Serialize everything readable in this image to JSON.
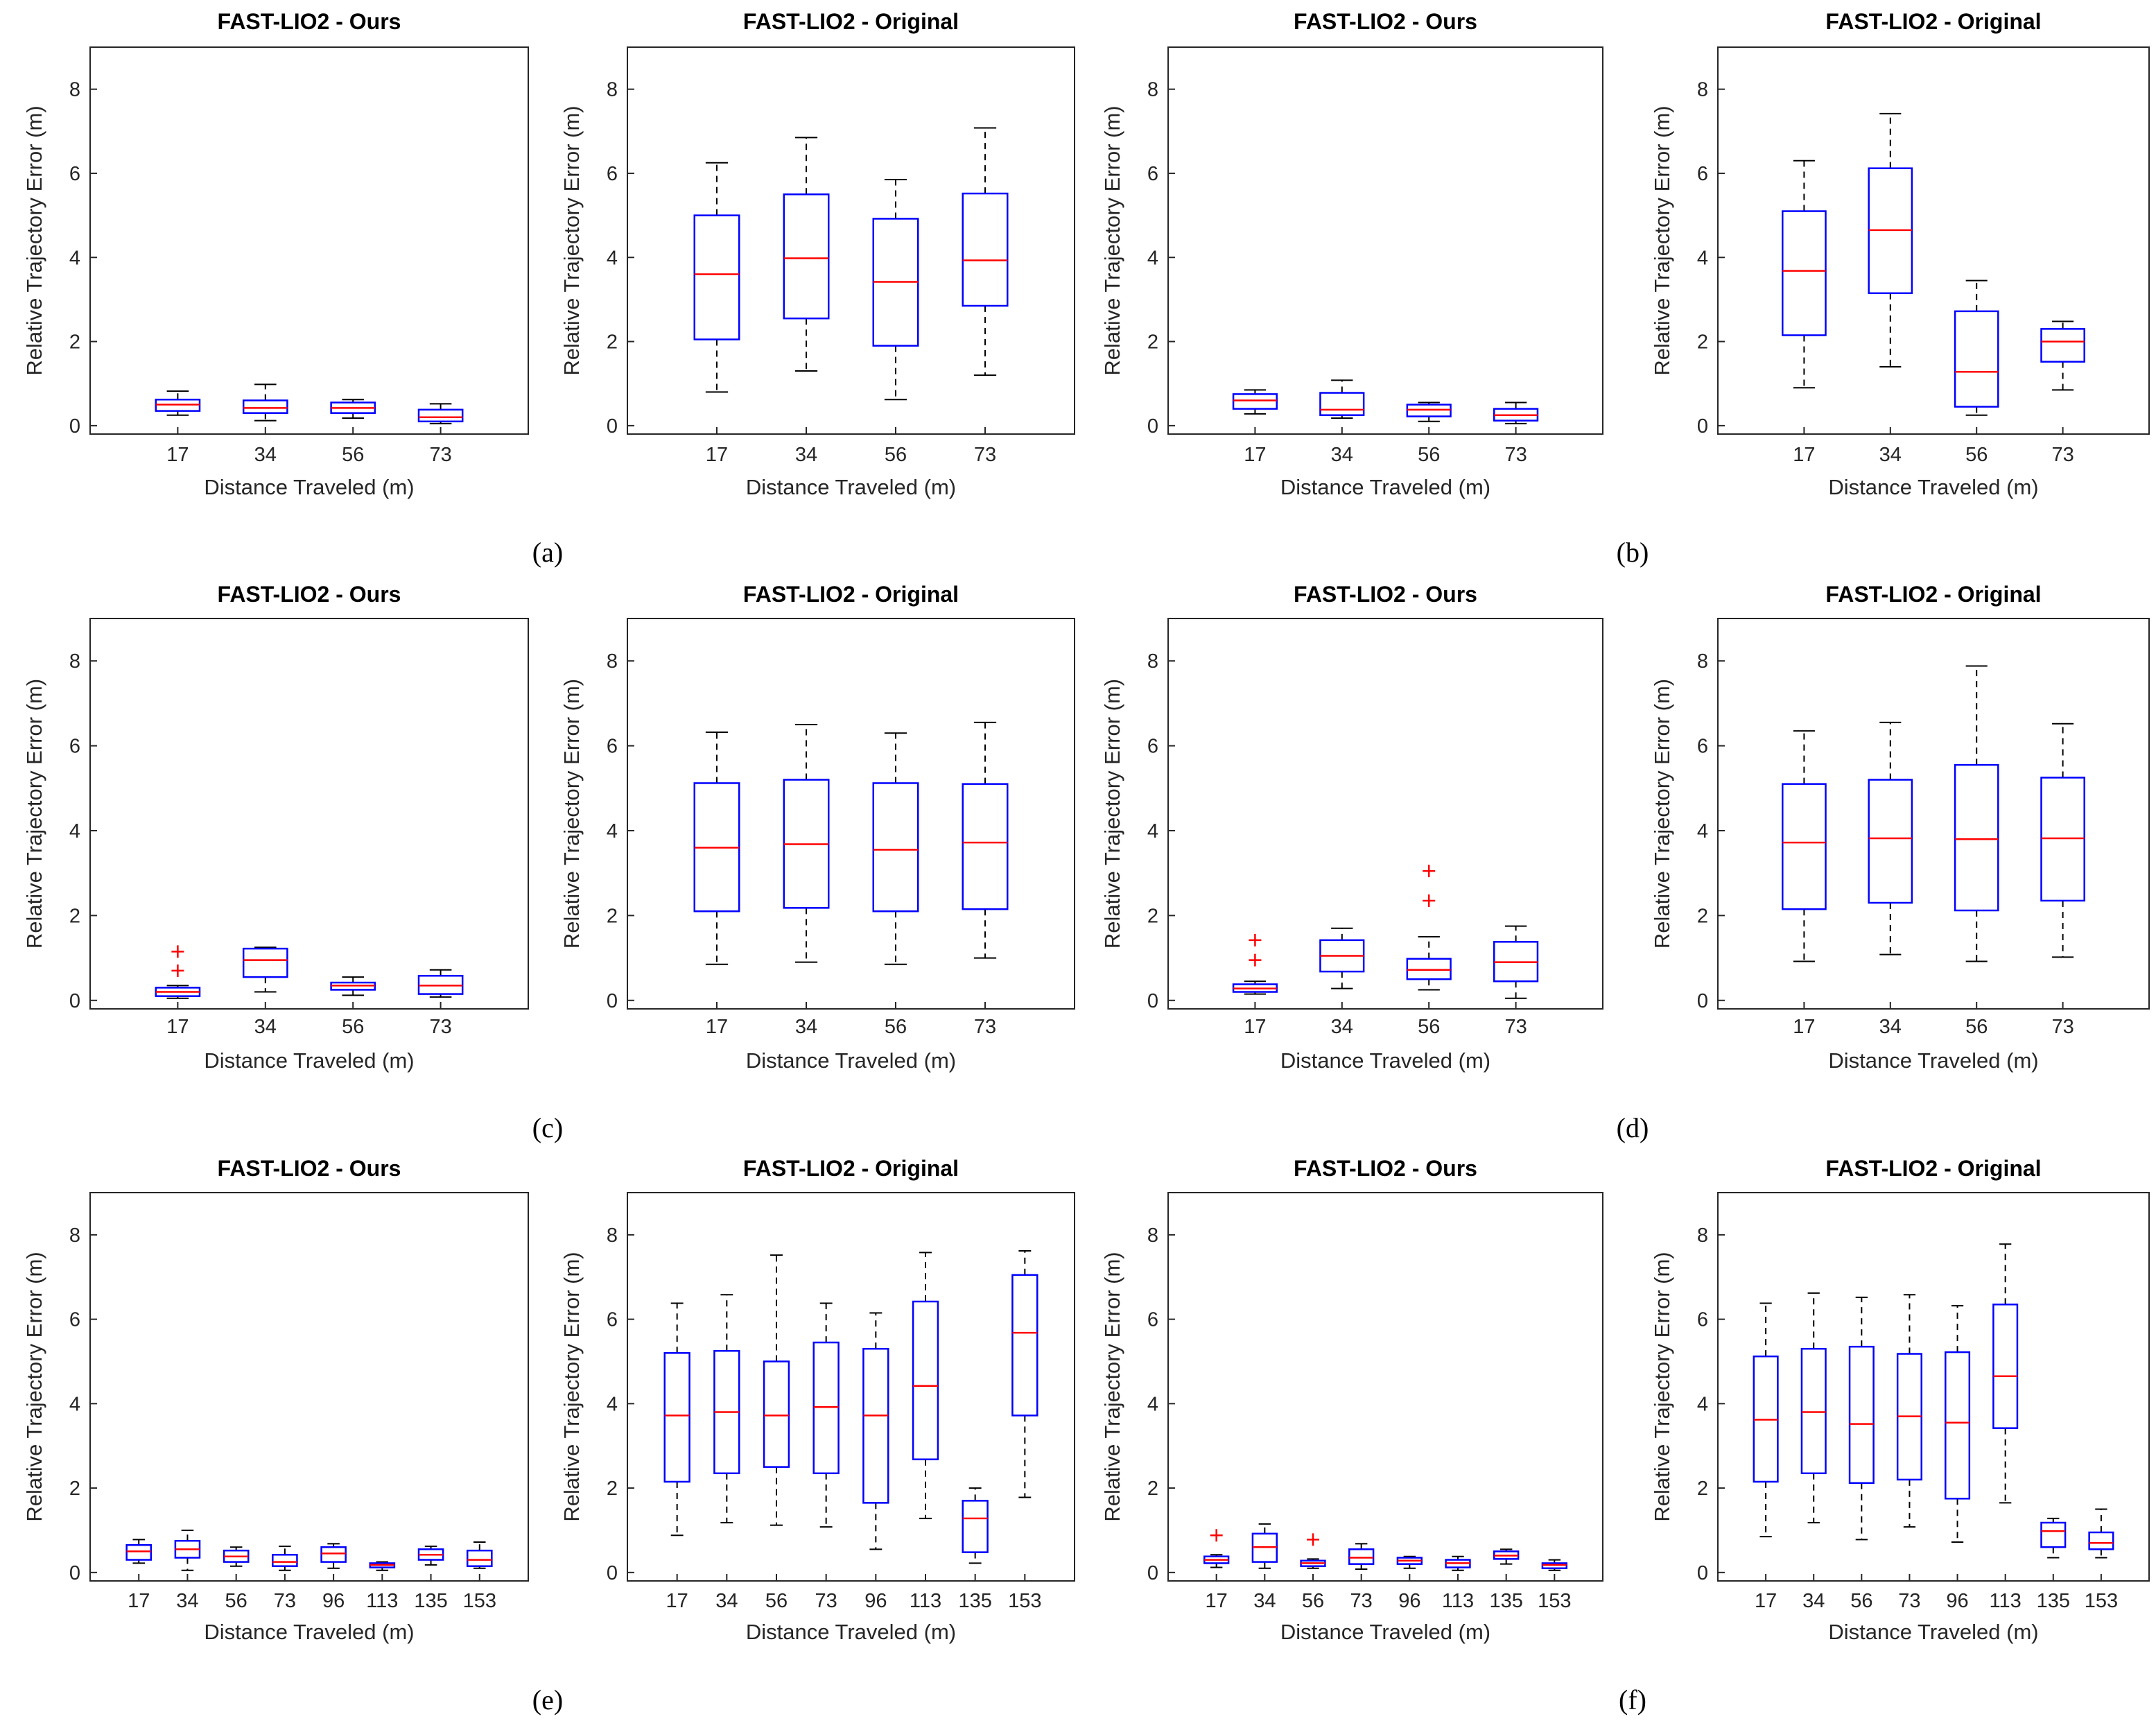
{
  "labels": {
    "ours_title": "FAST-LIO2 - Ours",
    "original_title": "FAST-LIO2 - Original",
    "xlabel": "Distance Traveled (m)",
    "ylabel": "Relative Trajectory Error (m)"
  },
  "captions": [
    "(a)",
    "(b)",
    "(c)",
    "(d)",
    "(e)",
    "(f)"
  ],
  "colors": {
    "box": "#0000ff",
    "median": "#ff0000",
    "whisker": "#000000",
    "outlier": "#ff0000",
    "frame": "#262626"
  },
  "chart_data": [
    {
      "type": "box",
      "title": "FAST-LIO2 - Ours",
      "xlabel": "Distance Traveled (m)",
      "ylabel": "Relative Trajectory Error (m)",
      "ylim": [
        -0.2,
        9
      ],
      "yticks": [
        0,
        2,
        4,
        6,
        8
      ],
      "categories": [
        "17",
        "34",
        "56",
        "73"
      ],
      "boxes": [
        {
          "q1": 0.35,
          "median": 0.5,
          "q3": 0.62,
          "wlo": 0.25,
          "whi": 0.82,
          "outliers": []
        },
        {
          "q1": 0.3,
          "median": 0.42,
          "q3": 0.6,
          "wlo": 0.12,
          "whi": 0.98,
          "outliers": []
        },
        {
          "q1": 0.3,
          "median": 0.42,
          "q3": 0.55,
          "wlo": 0.18,
          "whi": 0.62,
          "outliers": []
        },
        {
          "q1": 0.1,
          "median": 0.2,
          "q3": 0.38,
          "wlo": 0.05,
          "whi": 0.52,
          "outliers": []
        }
      ]
    },
    {
      "type": "box",
      "title": "FAST-LIO2 - Original",
      "xlabel": "Distance Traveled (m)",
      "ylabel": "Relative Trajectory Error (m)",
      "ylim": [
        -0.2,
        9
      ],
      "yticks": [
        0,
        2,
        4,
        6,
        8
      ],
      "categories": [
        "17",
        "34",
        "56",
        "73"
      ],
      "boxes": [
        {
          "q1": 2.05,
          "median": 3.6,
          "q3": 5.0,
          "wlo": 0.8,
          "whi": 6.25,
          "outliers": []
        },
        {
          "q1": 2.55,
          "median": 3.98,
          "q3": 5.5,
          "wlo": 1.3,
          "whi": 6.85,
          "outliers": []
        },
        {
          "q1": 1.9,
          "median": 3.42,
          "q3": 4.92,
          "wlo": 0.62,
          "whi": 5.85,
          "outliers": []
        },
        {
          "q1": 2.85,
          "median": 3.93,
          "q3": 5.52,
          "wlo": 1.2,
          "whi": 7.08,
          "outliers": []
        }
      ]
    },
    {
      "type": "box",
      "title": "FAST-LIO2 - Ours",
      "xlabel": "Distance Traveled (m)",
      "ylabel": "Relative Trajectory Error (m)",
      "ylim": [
        -0.2,
        9
      ],
      "yticks": [
        0,
        2,
        4,
        6,
        8
      ],
      "categories": [
        "17",
        "34",
        "56",
        "73"
      ],
      "boxes": [
        {
          "q1": 0.4,
          "median": 0.6,
          "q3": 0.75,
          "wlo": 0.28,
          "whi": 0.85,
          "outliers": []
        },
        {
          "q1": 0.25,
          "median": 0.38,
          "q3": 0.78,
          "wlo": 0.18,
          "whi": 1.08,
          "outliers": []
        },
        {
          "q1": 0.22,
          "median": 0.38,
          "q3": 0.5,
          "wlo": 0.1,
          "whi": 0.55,
          "outliers": []
        },
        {
          "q1": 0.12,
          "median": 0.25,
          "q3": 0.4,
          "wlo": 0.05,
          "whi": 0.55,
          "outliers": []
        }
      ]
    },
    {
      "type": "box",
      "title": "FAST-LIO2 - Original",
      "xlabel": "Distance Traveled (m)",
      "ylabel": "Relative Trajectory Error (m)",
      "ylim": [
        -0.2,
        9
      ],
      "yticks": [
        0,
        2,
        4,
        6,
        8
      ],
      "categories": [
        "17",
        "34",
        "56",
        "73"
      ],
      "boxes": [
        {
          "q1": 2.15,
          "median": 3.68,
          "q3": 5.1,
          "wlo": 0.9,
          "whi": 6.3,
          "outliers": []
        },
        {
          "q1": 3.15,
          "median": 4.65,
          "q3": 6.12,
          "wlo": 1.4,
          "whi": 7.42,
          "outliers": []
        },
        {
          "q1": 0.45,
          "median": 1.28,
          "q3": 2.72,
          "wlo": 0.25,
          "whi": 3.45,
          "outliers": []
        },
        {
          "q1": 1.52,
          "median": 2.0,
          "q3": 2.3,
          "wlo": 0.85,
          "whi": 2.48,
          "outliers": []
        }
      ]
    },
    {
      "type": "box",
      "title": "FAST-LIO2 - Ours",
      "xlabel": "Distance Traveled (m)",
      "ylabel": "Relative Trajectory Error (m)",
      "ylim": [
        -0.2,
        9
      ],
      "yticks": [
        0,
        2,
        4,
        6,
        8
      ],
      "categories": [
        "17",
        "34",
        "56",
        "73"
      ],
      "boxes": [
        {
          "q1": 0.1,
          "median": 0.2,
          "q3": 0.3,
          "wlo": 0.05,
          "whi": 0.35,
          "outliers": [
            0.7,
            1.15
          ]
        },
        {
          "q1": 0.55,
          "median": 0.95,
          "q3": 1.22,
          "wlo": 0.2,
          "whi": 1.25,
          "outliers": []
        },
        {
          "q1": 0.25,
          "median": 0.35,
          "q3": 0.42,
          "wlo": 0.12,
          "whi": 0.55,
          "outliers": []
        },
        {
          "q1": 0.15,
          "median": 0.35,
          "q3": 0.58,
          "wlo": 0.08,
          "whi": 0.72,
          "outliers": []
        }
      ]
    },
    {
      "type": "box",
      "title": "FAST-LIO2 - Original",
      "xlabel": "Distance Traveled (m)",
      "ylabel": "Relative Trajectory Error (m)",
      "ylim": [
        -0.2,
        9
      ],
      "yticks": [
        0,
        2,
        4,
        6,
        8
      ],
      "categories": [
        "17",
        "34",
        "56",
        "73"
      ],
      "boxes": [
        {
          "q1": 2.1,
          "median": 3.6,
          "q3": 5.12,
          "wlo": 0.85,
          "whi": 6.32,
          "outliers": []
        },
        {
          "q1": 2.18,
          "median": 3.68,
          "q3": 5.2,
          "wlo": 0.9,
          "whi": 6.5,
          "outliers": []
        },
        {
          "q1": 2.1,
          "median": 3.55,
          "q3": 5.12,
          "wlo": 0.85,
          "whi": 6.3,
          "outliers": []
        },
        {
          "q1": 2.15,
          "median": 3.72,
          "q3": 5.1,
          "wlo": 1.0,
          "whi": 6.55,
          "outliers": []
        }
      ]
    },
    {
      "type": "box",
      "title": "FAST-LIO2 - Ours",
      "xlabel": "Distance Traveled (m)",
      "ylabel": "Relative Trajectory Error (m)",
      "ylim": [
        -0.2,
        9
      ],
      "yticks": [
        0,
        2,
        4,
        6,
        8
      ],
      "categories": [
        "17",
        "34",
        "56",
        "73"
      ],
      "boxes": [
        {
          "q1": 0.2,
          "median": 0.28,
          "q3": 0.38,
          "wlo": 0.15,
          "whi": 0.45,
          "outliers": [
            0.95,
            1.42
          ]
        },
        {
          "q1": 0.68,
          "median": 1.05,
          "q3": 1.42,
          "wlo": 0.28,
          "whi": 1.7,
          "outliers": []
        },
        {
          "q1": 0.5,
          "median": 0.72,
          "q3": 0.98,
          "wlo": 0.25,
          "whi": 1.5,
          "outliers": [
            2.35,
            3.05
          ]
        },
        {
          "q1": 0.45,
          "median": 0.9,
          "q3": 1.38,
          "wlo": 0.05,
          "whi": 1.75,
          "outliers": []
        }
      ]
    },
    {
      "type": "box",
      "title": "FAST-LIO2 - Original",
      "xlabel": "Distance Traveled (m)",
      "ylabel": "Relative Trajectory Error (m)",
      "ylim": [
        -0.2,
        9
      ],
      "yticks": [
        0,
        2,
        4,
        6,
        8
      ],
      "categories": [
        "17",
        "34",
        "56",
        "73"
      ],
      "boxes": [
        {
          "q1": 2.15,
          "median": 3.72,
          "q3": 5.1,
          "wlo": 0.92,
          "whi": 6.35,
          "outliers": []
        },
        {
          "q1": 2.3,
          "median": 3.82,
          "q3": 5.2,
          "wlo": 1.08,
          "whi": 6.55,
          "outliers": []
        },
        {
          "q1": 2.12,
          "median": 3.8,
          "q3": 5.55,
          "wlo": 0.92,
          "whi": 7.88,
          "outliers": []
        },
        {
          "q1": 2.35,
          "median": 3.82,
          "q3": 5.25,
          "wlo": 1.02,
          "whi": 6.52,
          "outliers": []
        }
      ]
    },
    {
      "type": "box",
      "title": "FAST-LIO2 - Ours",
      "xlabel": "Distance Traveled (m)",
      "ylabel": "Relative Trajectory Error (m)",
      "ylim": [
        -0.2,
        9
      ],
      "yticks": [
        0,
        2,
        4,
        6,
        8
      ],
      "categories": [
        "17",
        "34",
        "56",
        "73",
        "96",
        "113",
        "135",
        "153"
      ],
      "boxes": [
        {
          "q1": 0.3,
          "median": 0.5,
          "q3": 0.65,
          "wlo": 0.22,
          "whi": 0.78,
          "outliers": []
        },
        {
          "q1": 0.35,
          "median": 0.55,
          "q3": 0.75,
          "wlo": 0.05,
          "whi": 1.0,
          "outliers": []
        },
        {
          "q1": 0.25,
          "median": 0.38,
          "q3": 0.52,
          "wlo": 0.15,
          "whi": 0.6,
          "outliers": []
        },
        {
          "q1": 0.15,
          "median": 0.25,
          "q3": 0.42,
          "wlo": 0.05,
          "whi": 0.62,
          "outliers": []
        },
        {
          "q1": 0.25,
          "median": 0.45,
          "q3": 0.6,
          "wlo": 0.1,
          "whi": 0.68,
          "outliers": []
        },
        {
          "q1": 0.12,
          "median": 0.18,
          "q3": 0.22,
          "wlo": 0.05,
          "whi": 0.25,
          "outliers": []
        },
        {
          "q1": 0.3,
          "median": 0.42,
          "q3": 0.55,
          "wlo": 0.18,
          "whi": 0.62,
          "outliers": []
        },
        {
          "q1": 0.15,
          "median": 0.3,
          "q3": 0.52,
          "wlo": 0.1,
          "whi": 0.72,
          "outliers": []
        }
      ]
    },
    {
      "type": "box",
      "title": "FAST-LIO2 - Original",
      "xlabel": "Distance Traveled (m)",
      "ylabel": "Relative Trajectory Error (m)",
      "ylim": [
        -0.2,
        9
      ],
      "yticks": [
        0,
        2,
        4,
        6,
        8
      ],
      "categories": [
        "17",
        "34",
        "56",
        "73",
        "96",
        "113",
        "135",
        "153"
      ],
      "boxes": [
        {
          "q1": 2.15,
          "median": 3.72,
          "q3": 5.2,
          "wlo": 0.88,
          "whi": 6.38,
          "outliers": []
        },
        {
          "q1": 2.35,
          "median": 3.8,
          "q3": 5.25,
          "wlo": 1.18,
          "whi": 6.58,
          "outliers": []
        },
        {
          "q1": 2.5,
          "median": 3.72,
          "q3": 5.0,
          "wlo": 1.12,
          "whi": 7.52,
          "outliers": []
        },
        {
          "q1": 2.35,
          "median": 3.92,
          "q3": 5.45,
          "wlo": 1.08,
          "whi": 6.38,
          "outliers": []
        },
        {
          "q1": 1.65,
          "median": 3.72,
          "q3": 5.3,
          "wlo": 0.55,
          "whi": 6.15,
          "outliers": []
        },
        {
          "q1": 2.68,
          "median": 4.42,
          "q3": 6.42,
          "wlo": 1.28,
          "whi": 7.58,
          "outliers": []
        },
        {
          "q1": 0.48,
          "median": 1.28,
          "q3": 1.7,
          "wlo": 0.22,
          "whi": 2.0,
          "outliers": []
        },
        {
          "q1": 3.72,
          "median": 5.68,
          "q3": 7.05,
          "wlo": 1.78,
          "whi": 7.62,
          "outliers": []
        }
      ]
    },
    {
      "type": "box",
      "title": "FAST-LIO2 - Ours",
      "xlabel": "Distance Traveled (m)",
      "ylabel": "Relative Trajectory Error (m)",
      "ylim": [
        -0.2,
        9
      ],
      "yticks": [
        0,
        2,
        4,
        6,
        8
      ],
      "categories": [
        "17",
        "34",
        "56",
        "73",
        "96",
        "113",
        "135",
        "153"
      ],
      "boxes": [
        {
          "q1": 0.22,
          "median": 0.3,
          "q3": 0.38,
          "wlo": 0.12,
          "whi": 0.42,
          "outliers": [
            0.88
          ]
        },
        {
          "q1": 0.25,
          "median": 0.6,
          "q3": 0.92,
          "wlo": 0.1,
          "whi": 1.15,
          "outliers": []
        },
        {
          "q1": 0.15,
          "median": 0.22,
          "q3": 0.28,
          "wlo": 0.1,
          "whi": 0.32,
          "outliers": [
            0.78
          ]
        },
        {
          "q1": 0.2,
          "median": 0.35,
          "q3": 0.55,
          "wlo": 0.08,
          "whi": 0.68,
          "outliers": []
        },
        {
          "q1": 0.2,
          "median": 0.28,
          "q3": 0.35,
          "wlo": 0.1,
          "whi": 0.38,
          "outliers": []
        },
        {
          "q1": 0.12,
          "median": 0.22,
          "q3": 0.3,
          "wlo": 0.05,
          "whi": 0.38,
          "outliers": []
        },
        {
          "q1": 0.32,
          "median": 0.4,
          "q3": 0.5,
          "wlo": 0.2,
          "whi": 0.55,
          "outliers": []
        },
        {
          "q1": 0.1,
          "median": 0.18,
          "q3": 0.22,
          "wlo": 0.05,
          "whi": 0.3,
          "outliers": []
        }
      ]
    },
    {
      "type": "box",
      "title": "FAST-LIO2 - Original",
      "xlabel": "Distance Traveled (m)",
      "ylabel": "Relative Trajectory Error (m)",
      "ylim": [
        -0.2,
        9
      ],
      "yticks": [
        0,
        2,
        4,
        6,
        8
      ],
      "categories": [
        "17",
        "34",
        "56",
        "73",
        "96",
        "113",
        "135",
        "153"
      ],
      "boxes": [
        {
          "q1": 2.15,
          "median": 3.62,
          "q3": 5.12,
          "wlo": 0.85,
          "whi": 6.38,
          "outliers": []
        },
        {
          "q1": 2.35,
          "median": 3.8,
          "q3": 5.3,
          "wlo": 1.18,
          "whi": 6.62,
          "outliers": []
        },
        {
          "q1": 2.12,
          "median": 3.52,
          "q3": 5.35,
          "wlo": 0.78,
          "whi": 6.52,
          "outliers": []
        },
        {
          "q1": 2.2,
          "median": 3.7,
          "q3": 5.18,
          "wlo": 1.08,
          "whi": 6.58,
          "outliers": []
        },
        {
          "q1": 1.75,
          "median": 3.55,
          "q3": 5.22,
          "wlo": 0.72,
          "whi": 6.32,
          "outliers": []
        },
        {
          "q1": 3.42,
          "median": 4.65,
          "q3": 6.35,
          "wlo": 1.65,
          "whi": 7.78,
          "outliers": []
        },
        {
          "q1": 0.6,
          "median": 0.98,
          "q3": 1.18,
          "wlo": 0.35,
          "whi": 1.28,
          "outliers": []
        },
        {
          "q1": 0.55,
          "median": 0.7,
          "q3": 0.95,
          "wlo": 0.35,
          "whi": 1.5,
          "outliers": []
        }
      ]
    }
  ]
}
